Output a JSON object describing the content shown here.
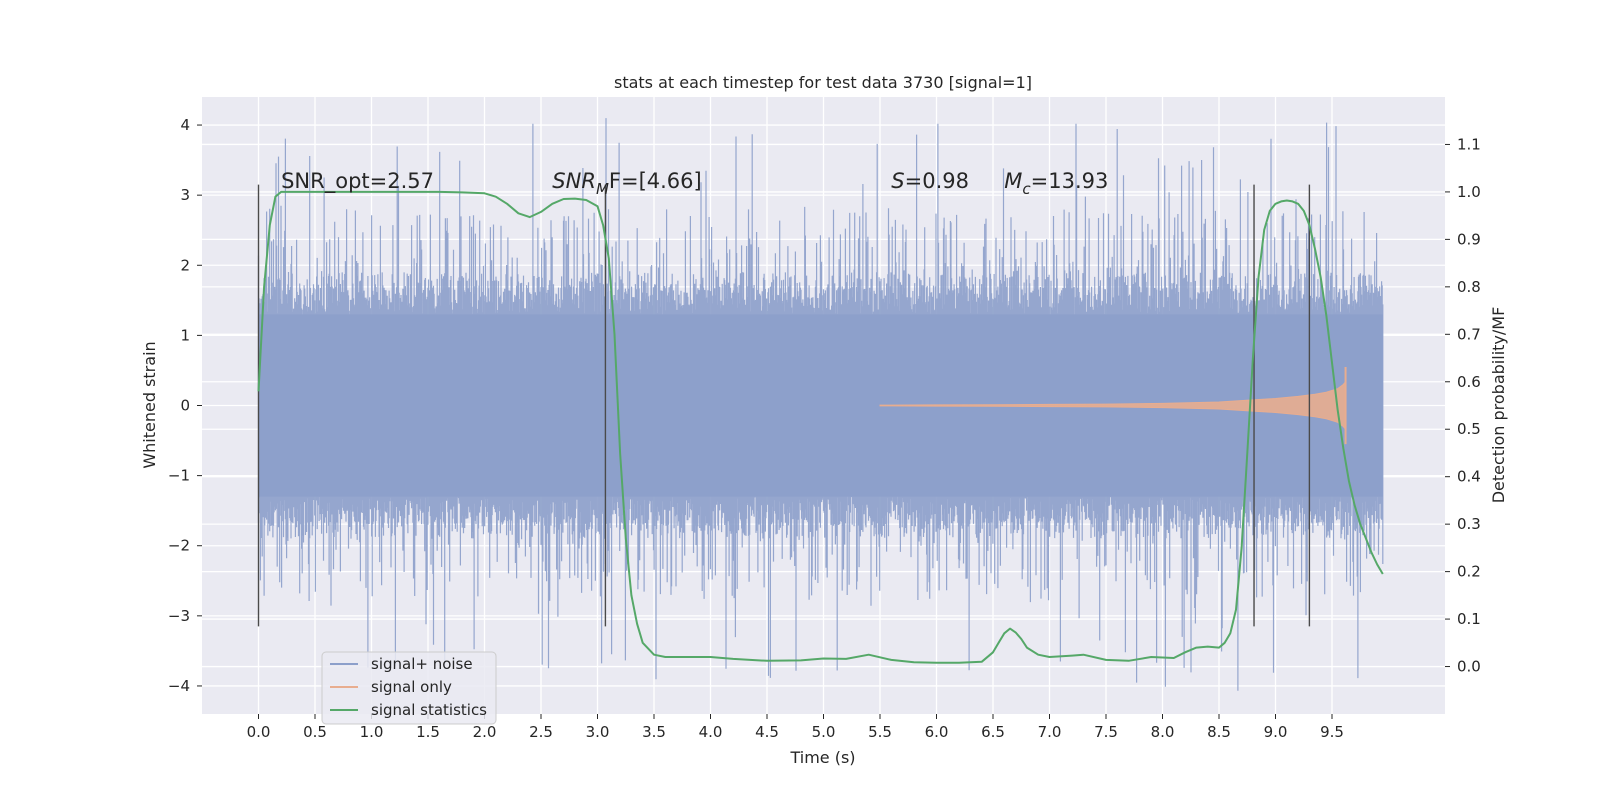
{
  "chart_data": {
    "type": "line",
    "title": "stats at each timestep for test data 3730 [signal=1]",
    "xlabel": "Time (s)",
    "ylabel": "Whitened strain",
    "y2label": "Detection probability/MF",
    "xlim": [
      -0.5,
      10.5
    ],
    "ylim": [
      -4.4,
      4.4
    ],
    "y2lim": [
      -0.1,
      1.2
    ],
    "x_ticks": [
      0.0,
      0.5,
      1.0,
      1.5,
      2.0,
      2.5,
      3.0,
      3.5,
      4.0,
      4.5,
      5.0,
      5.5,
      6.0,
      6.5,
      7.0,
      7.5,
      8.0,
      8.5,
      9.0,
      9.5
    ],
    "x_tick_labels": [
      "0.0",
      "0.5",
      "1.0",
      "1.5",
      "2.0",
      "2.5",
      "3.0",
      "3.5",
      "4.0",
      "4.5",
      "5.0",
      "5.5",
      "6.0",
      "6.5",
      "7.0",
      "7.5",
      "8.0",
      "8.5",
      "9.0",
      "9.5"
    ],
    "y_ticks": [
      -4,
      -3,
      -2,
      -1,
      0,
      1,
      2,
      3,
      4
    ],
    "y_tick_labels": [
      "−4",
      "−3",
      "−2",
      "−1",
      "0",
      "1",
      "2",
      "3",
      "4"
    ],
    "y2_ticks": [
      0.0,
      0.1,
      0.2,
      0.3,
      0.4,
      0.5,
      0.6,
      0.7,
      0.8,
      0.9,
      1.0,
      1.1
    ],
    "y2_tick_labels": [
      "0.0",
      "0.1",
      "0.2",
      "0.3",
      "0.4",
      "0.5",
      "0.6",
      "0.7",
      "0.8",
      "0.9",
      "1.0",
      "1.1"
    ],
    "grid": true,
    "legend": {
      "placement": "lower-left",
      "entries": [
        {
          "label": "signal+ noise",
          "color": "#8c9fca"
        },
        {
          "label": "signal only",
          "color": "#e8ad8f"
        },
        {
          "label": "signal statistics",
          "color": "#55a868"
        }
      ]
    },
    "annotations": [
      {
        "label": "SNR_opt=2.57",
        "x": 0.2,
        "y": 3.2
      },
      {
        "label": "SNR_MF=[4.66]",
        "x": 2.6,
        "y": 3.2,
        "base": "SNR",
        "sub": "M",
        "tail": "F=[4.66]"
      },
      {
        "label": "S=0.98",
        "x": 5.6,
        "y": 3.2,
        "base": "S",
        "tail": "=0.98"
      },
      {
        "label": "M_c=13.93",
        "x": 6.6,
        "y": 3.2,
        "base": "M",
        "sub": "c",
        "tail": "=13.93"
      }
    ],
    "vertical_lines_x": [
      0.0,
      3.07,
      8.81,
      9.3
    ],
    "vertical_lines_yrange": [
      -3.15,
      3.15
    ],
    "noise_band": {
      "x_range": [
        0.0,
        9.95
      ],
      "core_abs": 1.3,
      "typical_abs": 2.2,
      "max_abs": 4.1
    },
    "series": [
      {
        "name": "signal statistics",
        "axis": "right",
        "color": "#55a868",
        "x": [
          0.0,
          0.05,
          0.1,
          0.15,
          0.2,
          0.4,
          0.6,
          0.8,
          1.0,
          1.2,
          1.4,
          1.6,
          1.8,
          2.0,
          2.1,
          2.2,
          2.3,
          2.4,
          2.5,
          2.6,
          2.7,
          2.8,
          2.9,
          3.0,
          3.05,
          3.1,
          3.15,
          3.2,
          3.25,
          3.3,
          3.35,
          3.4,
          3.5,
          3.6,
          3.8,
          4.0,
          4.2,
          4.5,
          4.8,
          5.0,
          5.2,
          5.4,
          5.6,
          5.8,
          6.0,
          6.2,
          6.4,
          6.5,
          6.55,
          6.6,
          6.65,
          6.7,
          6.75,
          6.8,
          6.9,
          7.0,
          7.2,
          7.3,
          7.5,
          7.7,
          7.9,
          8.1,
          8.2,
          8.3,
          8.4,
          8.5,
          8.55,
          8.6,
          8.65,
          8.7,
          8.75,
          8.8,
          8.85,
          8.9,
          8.95,
          9.0,
          9.05,
          9.1,
          9.15,
          9.2,
          9.25,
          9.3,
          9.35,
          9.4,
          9.45,
          9.5,
          9.55,
          9.6,
          9.65,
          9.7,
          9.75,
          9.8,
          9.85,
          9.9,
          9.95
        ],
        "y": [
          0.58,
          0.8,
          0.93,
          0.99,
          1.0,
          1.0,
          1.0,
          1.0,
          1.0,
          1.0,
          1.0,
          1.0,
          0.999,
          0.997,
          0.99,
          0.975,
          0.955,
          0.947,
          0.958,
          0.975,
          0.985,
          0.986,
          0.983,
          0.97,
          0.93,
          0.86,
          0.7,
          0.45,
          0.27,
          0.15,
          0.09,
          0.05,
          0.025,
          0.02,
          0.02,
          0.02,
          0.016,
          0.012,
          0.013,
          0.017,
          0.016,
          0.025,
          0.014,
          0.009,
          0.008,
          0.008,
          0.01,
          0.03,
          0.05,
          0.07,
          0.08,
          0.072,
          0.058,
          0.04,
          0.025,
          0.02,
          0.023,
          0.025,
          0.014,
          0.012,
          0.02,
          0.018,
          0.03,
          0.04,
          0.042,
          0.04,
          0.05,
          0.07,
          0.12,
          0.25,
          0.45,
          0.65,
          0.82,
          0.92,
          0.96,
          0.975,
          0.98,
          0.982,
          0.98,
          0.975,
          0.96,
          0.93,
          0.88,
          0.82,
          0.74,
          0.64,
          0.54,
          0.46,
          0.39,
          0.34,
          0.3,
          0.27,
          0.24,
          0.215,
          0.195
        ]
      },
      {
        "name": "signal only",
        "axis": "left",
        "color": "#e8ad8f",
        "envelope_x": [
          5.5,
          6.0,
          6.5,
          7.0,
          7.5,
          8.0,
          8.5,
          8.8,
          9.0,
          9.2,
          9.35,
          9.45,
          9.55,
          9.6,
          9.62
        ],
        "envelope_y": [
          0.005,
          0.008,
          0.012,
          0.016,
          0.02,
          0.03,
          0.05,
          0.08,
          0.1,
          0.13,
          0.16,
          0.19,
          0.24,
          0.3,
          0.34
        ],
        "tip_abs": 0.55
      }
    ]
  }
}
